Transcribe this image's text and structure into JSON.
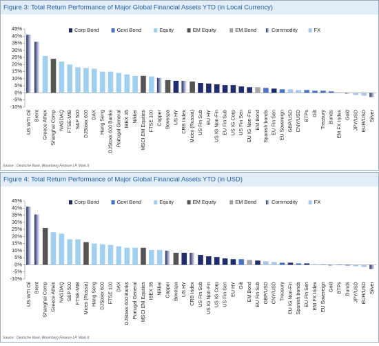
{
  "chart_data": [
    {
      "type": "bar",
      "title": "Figure 3: Total Return Performance of Major Global Financial Assets YTD (in Local Currency)",
      "source": "Source : Deutsche Bank, Bloomberg Finance LP, Mark-It",
      "categories": [
        "US WTI Oil",
        "Brent",
        "Greece Athex",
        "Shanghai Comp",
        "NASDAQ",
        "FTSE-MIB",
        "S&P 500",
        "DJStoxx 600",
        "DAX",
        "Hang Seng",
        "DJStoxx 600 Banks",
        "Portugal General",
        "IBEX 35",
        "Nikkei",
        "MSCI EM Equities",
        "FTSE 100",
        "Copper",
        "Bovespa",
        "US HY",
        "CRB Index",
        "Micex (Russia)",
        "US Fin Sub",
        "EU HY",
        "US IG Non-Fin",
        "EU Fin Sub",
        "US IG Corp",
        "US Fin Sen",
        "EU IG Non-Fin",
        "EM Bond",
        "Spanish bonds",
        "EU Fin Sen",
        "EU Sovereign",
        "GBP/USD",
        "CNY/USD",
        "BTPs",
        "Gilt",
        "Treasury",
        "Bunds",
        "EM FX Index",
        "Gold",
        "JPY/USD",
        "EUR/USD",
        "Silver"
      ],
      "series": [
        {
          "name": "Corp Bond",
          "color": "#1f2d6e",
          "values": [
            null,
            null,
            null,
            null,
            null,
            null,
            null,
            null,
            null,
            null,
            null,
            null,
            null,
            null,
            null,
            null,
            null,
            null,
            8.5,
            null,
            null,
            7,
            6.5,
            6,
            5.5,
            5.5,
            4.5,
            4,
            null,
            null,
            3,
            null,
            null,
            null,
            null,
            null,
            null,
            null,
            null,
            null,
            null,
            null,
            null
          ]
        },
        {
          "name": "Govt Bond",
          "color": "#4a74c9",
          "values": [
            null,
            null,
            null,
            null,
            null,
            null,
            null,
            null,
            null,
            null,
            null,
            null,
            null,
            null,
            null,
            null,
            null,
            null,
            null,
            null,
            null,
            null,
            null,
            null,
            null,
            null,
            null,
            null,
            null,
            3.5,
            null,
            2.5,
            null,
            null,
            2,
            1.5,
            1.5,
            1,
            null,
            null,
            null,
            null,
            null
          ]
        },
        {
          "name": "Equity",
          "color": "#9fd0f0",
          "values": [
            null,
            null,
            26,
            null,
            22,
            20,
            18,
            17.5,
            17,
            15,
            15,
            14,
            13,
            12,
            null,
            11.5,
            null,
            null,
            null,
            null,
            null,
            null,
            null,
            null,
            null,
            null,
            null,
            null,
            null,
            null,
            null,
            null,
            null,
            null,
            null,
            null,
            null,
            null,
            null,
            null,
            null,
            null,
            null
          ]
        },
        {
          "name": "EM Equity",
          "color": "#555555",
          "values": [
            null,
            null,
            null,
            24,
            null,
            null,
            null,
            null,
            null,
            null,
            null,
            null,
            null,
            null,
            12,
            null,
            null,
            9,
            null,
            null,
            8,
            null,
            null,
            null,
            null,
            null,
            null,
            null,
            null,
            null,
            null,
            null,
            null,
            null,
            null,
            null,
            null,
            null,
            null,
            null,
            null,
            null,
            null
          ]
        },
        {
          "name": "EM Bond",
          "color": "#a6a6a6",
          "values": [
            null,
            null,
            null,
            null,
            null,
            null,
            null,
            null,
            null,
            null,
            null,
            null,
            null,
            null,
            null,
            null,
            null,
            null,
            null,
            null,
            null,
            null,
            null,
            null,
            null,
            null,
            null,
            null,
            4,
            null,
            null,
            null,
            null,
            null,
            null,
            null,
            null,
            null,
            null,
            null,
            null,
            null,
            null
          ]
        },
        {
          "name": "Commodity",
          "color": "#1f2d6e",
          "gradient": true,
          "values": [
            41,
            36,
            null,
            null,
            null,
            null,
            null,
            null,
            null,
            null,
            null,
            null,
            null,
            null,
            null,
            null,
            10.5,
            null,
            null,
            8.5,
            null,
            null,
            null,
            null,
            null,
            null,
            null,
            null,
            null,
            null,
            null,
            null,
            null,
            null,
            null,
            null,
            null,
            null,
            null,
            -0.5,
            null,
            null,
            -3
          ]
        },
        {
          "name": "FX",
          "color": "#a9c8ee",
          "values": [
            null,
            null,
            null,
            null,
            null,
            null,
            null,
            null,
            null,
            null,
            null,
            null,
            null,
            null,
            null,
            null,
            null,
            null,
            null,
            null,
            null,
            null,
            null,
            null,
            null,
            null,
            null,
            null,
            null,
            null,
            null,
            null,
            2.5,
            2,
            null,
            null,
            null,
            null,
            0.5,
            null,
            -1.5,
            -2,
            null
          ]
        }
      ],
      "ylim": [
        -10,
        45
      ],
      "yticks": [
        {
          "value": -10,
          "label": "-10%"
        },
        {
          "value": -5,
          "label": "-5%"
        },
        {
          "value": 0,
          "label": "0%"
        },
        {
          "value": 5,
          "label": "5%"
        },
        {
          "value": 10,
          "label": "10%"
        },
        {
          "value": 15,
          "label": "15%"
        },
        {
          "value": 20,
          "label": "20%"
        },
        {
          "value": 25,
          "label": "25%"
        },
        {
          "value": 30,
          "label": "30%"
        },
        {
          "value": 35,
          "label": "35%"
        },
        {
          "value": 40,
          "label": "40%"
        },
        {
          "value": 45,
          "label": "45%"
        }
      ]
    },
    {
      "type": "bar",
      "title": "Figure 4: Total Return Performance of Major Global Financial Assets YTD (in USD)",
      "source": "Source : Deutsche Bank, Bloomberg Finance LP, Mark-It",
      "categories": [
        "US WTI Oil",
        "Brent",
        "Shanghai Comp",
        "Greece Athex",
        "NASDAQ",
        "S&P 500",
        "FTSE-MIB",
        "Micex (Russia)",
        "Hang Seng",
        "DJStoxx 600",
        "FTSE 100",
        "DAX",
        "DJStoxx 600 Banks",
        "Portugal General",
        "MSCI EM Equities",
        "IBEX 35",
        "Nikkei",
        "Copper",
        "Bovespa",
        "US HY",
        "CRB Index",
        "US Fin Sub",
        "US IG Non-Fin",
        "US IG Corp",
        "US Fin Sen",
        "EU HY",
        "Gilt",
        "EM Bond",
        "EU Fin Sub",
        "GBP/USD",
        "CNY/USD",
        "Treasury",
        "EU IG Non-Fin",
        "Spanish bonds",
        "EU Fin Sen",
        "EM FX Index",
        "EU Sovereign",
        "Gold",
        "BTPs",
        "Bunds",
        "JPY/USD",
        "EUR/USD",
        "Silver"
      ],
      "series": [
        {
          "name": "Corp Bond",
          "color": "#1f2d6e",
          "values": [
            null,
            null,
            null,
            null,
            null,
            null,
            null,
            null,
            null,
            null,
            null,
            null,
            null,
            null,
            null,
            null,
            null,
            null,
            null,
            8.5,
            null,
            7,
            6,
            5.5,
            4.5,
            4,
            null,
            null,
            3,
            null,
            null,
            null,
            1.5,
            null,
            1,
            null,
            null,
            null,
            null,
            null,
            null,
            null,
            null
          ]
        },
        {
          "name": "Govt Bond",
          "color": "#4a74c9",
          "values": [
            null,
            null,
            null,
            null,
            null,
            null,
            null,
            null,
            null,
            null,
            null,
            null,
            null,
            null,
            null,
            null,
            null,
            null,
            null,
            null,
            null,
            null,
            null,
            null,
            null,
            null,
            4,
            null,
            null,
            null,
            null,
            1.5,
            null,
            1,
            null,
            null,
            0.3,
            null,
            -0.3,
            -0.5,
            null,
            null,
            null
          ]
        },
        {
          "name": "Equity",
          "color": "#9fd0f0",
          "values": [
            null,
            null,
            null,
            23,
            22,
            18,
            18,
            null,
            15,
            14.5,
            14,
            13,
            12,
            12,
            null,
            10.5,
            10.5,
            null,
            null,
            null,
            null,
            null,
            null,
            null,
            null,
            null,
            null,
            null,
            null,
            null,
            null,
            null,
            null,
            null,
            null,
            null,
            null,
            null,
            null,
            null,
            null,
            null,
            null
          ]
        },
        {
          "name": "EM Equity",
          "color": "#555555",
          "values": [
            null,
            null,
            26,
            null,
            null,
            null,
            null,
            16,
            null,
            null,
            null,
            null,
            null,
            null,
            12,
            null,
            null,
            null,
            8.5,
            null,
            null,
            null,
            null,
            null,
            null,
            null,
            null,
            null,
            null,
            null,
            null,
            null,
            null,
            null,
            null,
            null,
            null,
            null,
            null,
            null,
            null,
            null,
            null
          ]
        },
        {
          "name": "EM Bond",
          "color": "#a6a6a6",
          "values": [
            null,
            null,
            null,
            null,
            null,
            null,
            null,
            null,
            null,
            null,
            null,
            null,
            null,
            null,
            null,
            null,
            null,
            null,
            null,
            null,
            null,
            null,
            null,
            null,
            null,
            null,
            null,
            3.5,
            null,
            null,
            null,
            null,
            null,
            null,
            null,
            null,
            null,
            null,
            null,
            null,
            null,
            null,
            null
          ]
        },
        {
          "name": "Commodity",
          "color": "#1f2d6e",
          "gradient": true,
          "values": [
            41,
            35.5,
            null,
            null,
            null,
            null,
            null,
            null,
            null,
            null,
            null,
            null,
            null,
            null,
            null,
            null,
            null,
            10,
            null,
            null,
            8.5,
            null,
            null,
            null,
            null,
            null,
            null,
            null,
            null,
            null,
            null,
            null,
            null,
            null,
            null,
            null,
            null,
            -0.5,
            null,
            null,
            null,
            null,
            -3
          ]
        },
        {
          "name": "FX",
          "color": "#a9c8ee",
          "values": [
            null,
            null,
            null,
            null,
            null,
            null,
            null,
            null,
            null,
            null,
            null,
            null,
            null,
            null,
            null,
            null,
            null,
            null,
            null,
            null,
            null,
            null,
            null,
            null,
            null,
            null,
            null,
            null,
            null,
            2.5,
            2,
            null,
            null,
            null,
            null,
            0.5,
            null,
            null,
            null,
            null,
            -1,
            -1.5,
            null
          ]
        }
      ],
      "ylim": [
        -10,
        45
      ],
      "yticks": [
        {
          "value": -10,
          "label": "-10%"
        },
        {
          "value": -5,
          "label": "-5%"
        },
        {
          "value": 0,
          "label": "0%"
        },
        {
          "value": 5,
          "label": "5%"
        },
        {
          "value": 10,
          "label": "10%"
        },
        {
          "value": 15,
          "label": "15%"
        },
        {
          "value": 20,
          "label": "20%"
        },
        {
          "value": 25,
          "label": "25%"
        },
        {
          "value": 30,
          "label": "30%"
        },
        {
          "value": 35,
          "label": "35%"
        },
        {
          "value": 40,
          "label": "40%"
        },
        {
          "value": 45,
          "label": "45%"
        }
      ]
    }
  ]
}
